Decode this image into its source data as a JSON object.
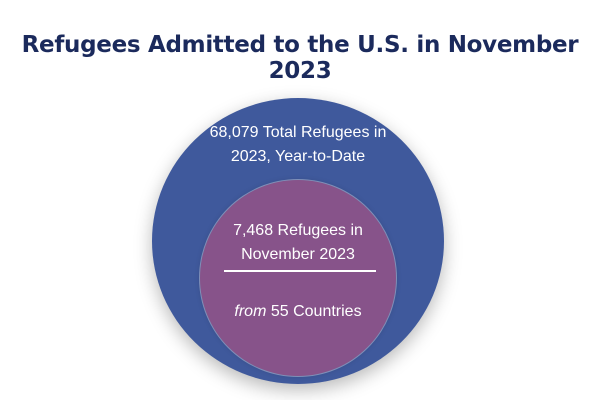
{
  "title": "Refugees Admitted to the U.S. in November 2023",
  "outer": {
    "line1": "68,079 Total Refugees in",
    "line2": "2023, Year-to-Date",
    "color": "#3f599c"
  },
  "inner": {
    "line1": "7,468 Refugees in",
    "line2": "November 2023",
    "countries_prefix": "from",
    "countries_rest": " 55 Countries",
    "color": "#87538a"
  },
  "title_color": "#1b2a5c"
}
